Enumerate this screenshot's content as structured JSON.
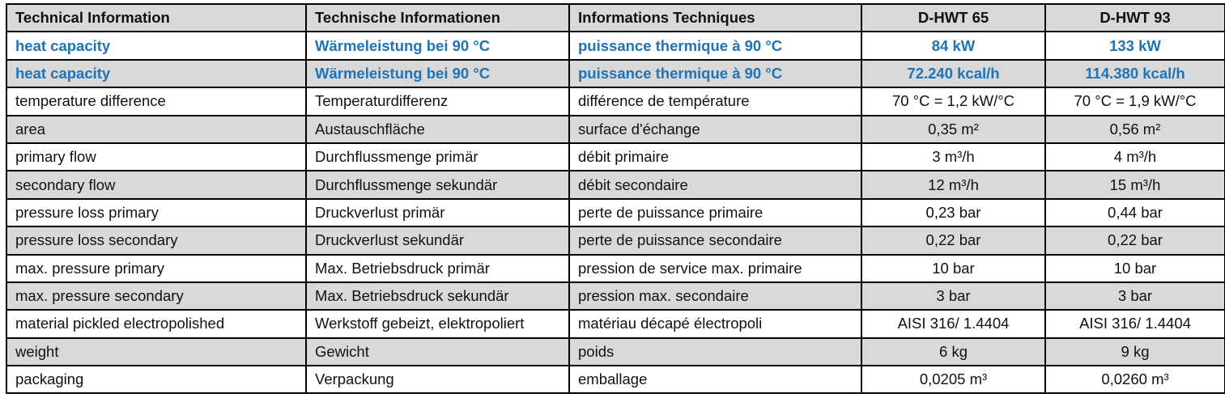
{
  "header": [
    "Technical Information",
    "Technische Informationen",
    "Informations Techniques",
    "D-HWT 65",
    "D-HWT 93"
  ],
  "rows": [
    [
      "heat capacity",
      "Wärmeleistung bei 90 °C",
      "puissance thermique à 90 °C",
      "84 kW",
      "133 kW"
    ],
    [
      "heat capacity",
      "Wärmeleistung bei 90 °C",
      "puissance thermique à 90 °C",
      "72.240 kcal/h",
      "114.380 kcal/h"
    ],
    [
      "temperature difference",
      "Temperaturdifferenz",
      "différence de température",
      "70 °C = 1,2 kW/°C",
      "70 °C = 1,9 kW/°C"
    ],
    [
      "area",
      "Austauschfläche",
      "surface d'échange",
      "0,35 m²",
      "0,56 m²"
    ],
    [
      "primary flow",
      "Durchflussmenge primär",
      "débit primaire",
      "3 m³/h",
      "4 m³/h"
    ],
    [
      "secondary flow",
      "Durchflussmenge sekundär",
      "débit secondaire",
      "12 m³/h",
      "15 m³/h"
    ],
    [
      "pressure loss primary",
      "Druckverlust primär",
      "perte de puissance primaire",
      "0,23 bar",
      "0,44 bar"
    ],
    [
      "pressure loss secondary",
      "Druckverlust sekundär",
      "perte de puissance secondaire",
      "0,22 bar",
      "0,22 bar"
    ],
    [
      "max. pressure primary",
      "Max. Betriebsdruck primär",
      "pression de service max. primaire",
      "10 bar",
      "10 bar"
    ],
    [
      "max. pressure secondary",
      "Max. Betriebsdruck sekundär",
      "pression max. secondaire",
      "3 bar",
      "3 bar"
    ],
    [
      "material pickled electropolished",
      "Werkstoff gebeizt, elektropoliert",
      "matériau décapé électropoli",
      "AISI 316/ 1.4404",
      "AISI 316/ 1.4404"
    ],
    [
      "weight",
      "Gewicht",
      "poids",
      "6 kg",
      "9 kg"
    ],
    [
      "packaging",
      "Verpackung",
      "emballage",
      "0,0205 m³",
      "0,0260 m³"
    ]
  ],
  "colors": {
    "highlight_text": "#1f73b7",
    "row_shade": "#d9d9d9"
  }
}
